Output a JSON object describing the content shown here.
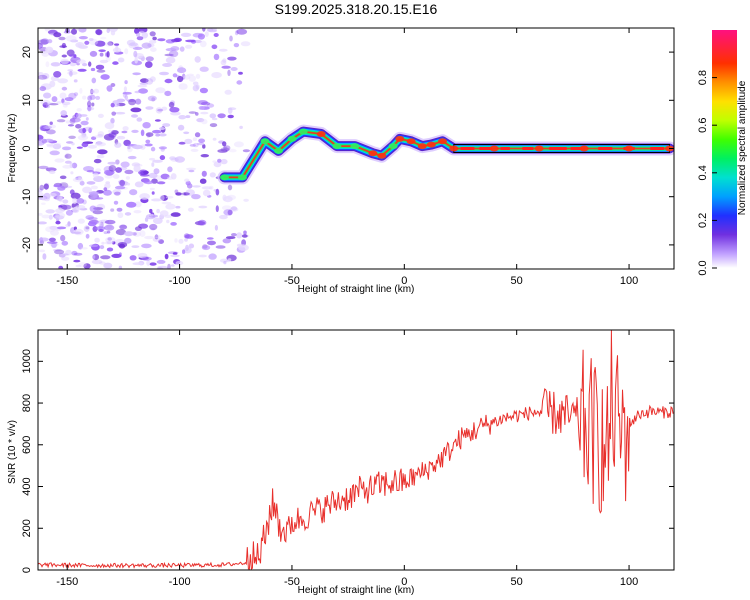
{
  "title": "S199.2025.318.20.15.E16",
  "chart_data": [
    {
      "type": "heatmap",
      "title": "S199.2025.318.20.15.E16",
      "xlabel": "Height of straight line (km)",
      "ylabel": "Frequency (Hz)",
      "xlim": [
        -163,
        120
      ],
      "ylim": [
        -25,
        25
      ],
      "xticks": [
        -150,
        -100,
        -50,
        0,
        50,
        100
      ],
      "yticks": [
        -20,
        -10,
        0,
        10,
        20
      ],
      "colorbar": {
        "label": "Normalized spectral amplitude",
        "range": [
          0,
          1
        ],
        "ticks": [
          "0.0",
          "0.2",
          "0.4",
          "0.6",
          "0.8"
        ],
        "tick_values": [
          0.0,
          0.2,
          0.4,
          0.6,
          0.8
        ]
      },
      "noise_region_x": [
        -163,
        -70
      ],
      "ridge": [
        {
          "x": -80,
          "f": -6.0,
          "a": 0.5
        },
        {
          "x": -72,
          "f": -6.0,
          "a": 0.45
        },
        {
          "x": -62,
          "f": 1.5,
          "a": 0.4
        },
        {
          "x": -56,
          "f": -0.5,
          "a": 0.35
        },
        {
          "x": -50,
          "f": 2.0,
          "a": 0.35
        },
        {
          "x": -45,
          "f": 3.5,
          "a": 0.5
        },
        {
          "x": -37,
          "f": 3.0,
          "a": 0.55
        },
        {
          "x": -30,
          "f": 0.5,
          "a": 0.45
        },
        {
          "x": -22,
          "f": 0.5,
          "a": 0.45
        },
        {
          "x": -14,
          "f": -1.0,
          "a": 0.55
        },
        {
          "x": -10,
          "f": -1.5,
          "a": 0.55
        },
        {
          "x": -5,
          "f": 0.5,
          "a": 0.45
        },
        {
          "x": -2,
          "f": 2.0,
          "a": 0.55
        },
        {
          "x": 3,
          "f": 1.5,
          "a": 0.55
        },
        {
          "x": 8,
          "f": 0.5,
          "a": 0.55
        },
        {
          "x": 12,
          "f": 0.8,
          "a": 0.55
        },
        {
          "x": 17,
          "f": 1.5,
          "a": 0.55
        },
        {
          "x": 22,
          "f": 0.0,
          "a": 0.6
        },
        {
          "x": 40,
          "f": 0.0,
          "a": 0.7
        },
        {
          "x": 60,
          "f": 0.0,
          "a": 0.75
        },
        {
          "x": 80,
          "f": 0.0,
          "a": 0.75
        },
        {
          "x": 100,
          "f": 0.0,
          "a": 0.75
        },
        {
          "x": 118,
          "f": 0.0,
          "a": 0.85
        }
      ]
    },
    {
      "type": "line",
      "xlabel": "Height of straight line (km)",
      "ylabel": "SNR (10 * v/v)",
      "xlim": [
        -163,
        120
      ],
      "ylim": [
        0,
        1150
      ],
      "xticks": [
        -150,
        -100,
        -50,
        0,
        50,
        100
      ],
      "yticks": [
        0,
        200,
        400,
        600,
        800,
        1000
      ],
      "series": [
        {
          "name": "SNR",
          "color": "#e8302c",
          "x": [
            -163,
            -140,
            -120,
            -100,
            -80,
            -70,
            -65,
            -62,
            -60,
            -58,
            -55,
            -52,
            -50,
            -45,
            -40,
            -35,
            -30,
            -25,
            -20,
            -15,
            -10,
            -5,
            0,
            5,
            10,
            15,
            20,
            25,
            30,
            35,
            40,
            45,
            50,
            55,
            60,
            65,
            70,
            75,
            80,
            85,
            88,
            90,
            92,
            95,
            98,
            100,
            105,
            110,
            115,
            120
          ],
          "y": [
            25,
            22,
            22,
            22,
            25,
            35,
            60,
            150,
            270,
            320,
            200,
            180,
            230,
            250,
            280,
            300,
            330,
            350,
            380,
            390,
            410,
            420,
            420,
            450,
            480,
            520,
            570,
            630,
            660,
            690,
            710,
            730,
            740,
            750,
            760,
            755,
            740,
            730,
            700,
            650,
            600,
            500,
            800,
            700,
            650,
            700,
            750,
            760,
            755,
            760
          ]
        }
      ]
    }
  ]
}
